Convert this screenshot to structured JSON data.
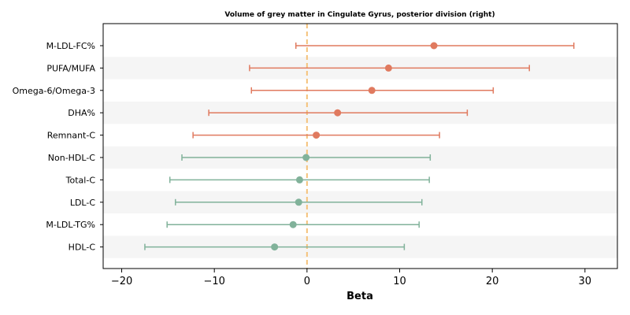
{
  "chart_data": {
    "type": "forest",
    "title": "Volume of grey matter in Cingulate Gyrus, posterior division (right)",
    "xlabel": "Beta",
    "ylabel": "",
    "xlim": [
      -22,
      33.5
    ],
    "xticks": [
      -20,
      -10,
      0,
      10,
      20,
      30
    ],
    "xtick_labels": [
      "−20",
      "−10",
      "0",
      "10",
      "20",
      "30"
    ],
    "reference_line": 0,
    "reference_color": "#f5c27a",
    "colors": {
      "positive": "#e07a5f",
      "negative": "#81b29a",
      "band": "#f5f5f5"
    },
    "rows": [
      {
        "label": "M-LDL-FC%",
        "beta": 13.7,
        "low": -1.2,
        "high": 28.8,
        "group": "positive"
      },
      {
        "label": "PUFA/MUFA",
        "beta": 8.8,
        "low": -6.2,
        "high": 24.0,
        "group": "positive"
      },
      {
        "label": "Omega-6/Omega-3",
        "beta": 7.0,
        "low": -6.0,
        "high": 20.1,
        "group": "positive"
      },
      {
        "label": "DHA%",
        "beta": 3.3,
        "low": -10.6,
        "high": 17.3,
        "group": "positive"
      },
      {
        "label": "Remnant-C",
        "beta": 1.0,
        "low": -12.3,
        "high": 14.3,
        "group": "positive"
      },
      {
        "label": "Non-HDL-C",
        "beta": -0.1,
        "low": -13.5,
        "high": 13.3,
        "group": "negative"
      },
      {
        "label": "Total-C",
        "beta": -0.8,
        "low": -14.8,
        "high": 13.2,
        "group": "negative"
      },
      {
        "label": "LDL-C",
        "beta": -0.9,
        "low": -14.2,
        "high": 12.4,
        "group": "negative"
      },
      {
        "label": "M-LDL-TG%",
        "beta": -1.5,
        "low": -15.1,
        "high": 12.1,
        "group": "negative"
      },
      {
        "label": "HDL-C",
        "beta": -3.5,
        "low": -17.5,
        "high": 10.5,
        "group": "negative"
      }
    ]
  }
}
